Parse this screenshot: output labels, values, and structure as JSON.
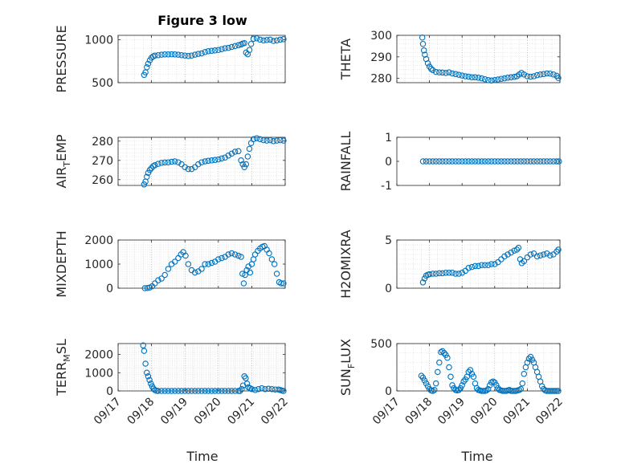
{
  "figure": {
    "title": "Figure 3 low",
    "xlabel": "Time",
    "marker_color": "#0072bd",
    "axis_color": "#262626",
    "grid_color": "#b0b0b0"
  },
  "chart_data": [
    {
      "type": "scatter",
      "ylabel": "PRESSURE",
      "ylim": [
        500,
        1050
      ],
      "yticks": [
        500,
        1000
      ],
      "xlim": [
        17,
        22
      ],
      "xticks": [
        "09/17",
        "09/18",
        "09/19",
        "09/20",
        "09/21",
        "09/22"
      ],
      "xtick_labels_shown": false,
      "grid": true,
      "series": [
        {
          "x": [
            17.78,
            17.82,
            17.86,
            17.9,
            17.95,
            18.0,
            18.05,
            18.1,
            18.2,
            18.3,
            18.4,
            18.5,
            18.6,
            18.7,
            18.8,
            18.9,
            19.0,
            19.1,
            19.2,
            19.3,
            19.4,
            19.5,
            19.6,
            19.7,
            19.8,
            19.9,
            20.0,
            20.1,
            20.2,
            20.3,
            20.4,
            20.5,
            20.6,
            20.68,
            20.73,
            20.78,
            20.83,
            20.88,
            20.93,
            20.98,
            21.05,
            21.15,
            21.25,
            21.35,
            21.45,
            21.55,
            21.65,
            21.75,
            21.85,
            21.95
          ],
          "y": [
            590,
            620,
            680,
            720,
            760,
            790,
            805,
            815,
            820,
            825,
            828,
            828,
            830,
            828,
            825,
            820,
            815,
            810,
            815,
            825,
            835,
            840,
            855,
            865,
            870,
            875,
            880,
            890,
            900,
            905,
            915,
            925,
            935,
            945,
            955,
            960,
            850,
            830,
            880,
            950,
            1010,
            1015,
            1000,
            990,
            995,
            1000,
            985,
            990,
            1000,
            1005
          ]
        }
      ]
    },
    {
      "type": "scatter",
      "ylabel": "THETA",
      "ylim": [
        278,
        300
      ],
      "yticks": [
        280,
        290,
        300
      ],
      "xlim": [
        17,
        22
      ],
      "xticks": [
        "09/17",
        "09/18",
        "09/19",
        "09/20",
        "09/21",
        "09/22"
      ],
      "xtick_labels_shown": false,
      "grid": true,
      "series": [
        {
          "x": [
            17.78,
            17.8,
            17.83,
            17.86,
            17.9,
            17.95,
            18.0,
            18.05,
            18.1,
            18.2,
            18.3,
            18.4,
            18.5,
            18.6,
            18.7,
            18.8,
            18.9,
            19.0,
            19.1,
            19.2,
            19.3,
            19.4,
            19.5,
            19.6,
            19.7,
            19.8,
            19.9,
            20.0,
            20.1,
            20.2,
            20.3,
            20.4,
            20.5,
            20.6,
            20.68,
            20.75,
            20.82,
            20.9,
            21.0,
            21.1,
            21.2,
            21.3,
            21.4,
            21.5,
            21.6,
            21.7,
            21.8,
            21.9,
            21.95
          ],
          "y": [
            299,
            296,
            293,
            291,
            289,
            287,
            285.5,
            284.5,
            283.8,
            283,
            282.8,
            282.7,
            282.5,
            282.8,
            282.3,
            282,
            281.7,
            281.3,
            281,
            280.8,
            280.5,
            280.5,
            280.3,
            280,
            279.6,
            279.2,
            279,
            279.2,
            279.5,
            279.8,
            280,
            280.3,
            280.5,
            280.7,
            281,
            281.8,
            282.5,
            281.8,
            281,
            280.8,
            281,
            281.5,
            281.8,
            282,
            282.3,
            282.2,
            281.8,
            281.2,
            280.2
          ]
        }
      ]
    },
    {
      "type": "scatter",
      "ylabel": "AIR_TEMP",
      "ylim": [
        257,
        282
      ],
      "yticks": [
        260,
        270,
        280
      ],
      "xlim": [
        17,
        22
      ],
      "xticks": [
        "09/17",
        "09/18",
        "09/19",
        "09/20",
        "09/21",
        "09/22"
      ],
      "xtick_labels_shown": false,
      "grid": true,
      "series": [
        {
          "x": [
            17.78,
            17.82,
            17.86,
            17.9,
            17.95,
            18.0,
            18.05,
            18.1,
            18.2,
            18.3,
            18.4,
            18.5,
            18.6,
            18.7,
            18.8,
            18.9,
            19.0,
            19.1,
            19.2,
            19.3,
            19.4,
            19.5,
            19.6,
            19.7,
            19.8,
            19.9,
            20.0,
            20.1,
            20.2,
            20.3,
            20.4,
            20.5,
            20.6,
            20.68,
            20.73,
            20.78,
            20.83,
            20.88,
            20.93,
            20.98,
            21.05,
            21.15,
            21.25,
            21.35,
            21.45,
            21.55,
            21.65,
            21.75,
            21.85,
            21.95
          ],
          "y": [
            257.5,
            259,
            261.5,
            263.5,
            265,
            266,
            267,
            267.5,
            268.2,
            268.7,
            268.9,
            269,
            269.3,
            269.5,
            269,
            268,
            266.5,
            265.5,
            265.5,
            266.5,
            268,
            269,
            269.5,
            269.8,
            270,
            270.2,
            270.5,
            271,
            271.5,
            272.5,
            273.5,
            274.5,
            274.8,
            270,
            268,
            266.5,
            268,
            272,
            276,
            279,
            281,
            281.5,
            281,
            280.5,
            280.3,
            280.5,
            280,
            280.3,
            280.5,
            280.3
          ]
        }
      ]
    },
    {
      "type": "scatter",
      "ylabel": "RAINFALL",
      "ylim": [
        -1,
        1
      ],
      "yticks": [
        -1,
        0,
        1
      ],
      "xlim": [
        17,
        22
      ],
      "xticks": [
        "09/17",
        "09/18",
        "09/19",
        "09/20",
        "09/21",
        "09/22"
      ],
      "xtick_labels_shown": false,
      "grid": false,
      "series": [
        {
          "x": [
            17.8,
            17.9,
            18.0,
            18.1,
            18.2,
            18.3,
            18.4,
            18.5,
            18.6,
            18.7,
            18.8,
            18.9,
            19.0,
            19.1,
            19.2,
            19.3,
            19.4,
            19.5,
            19.6,
            19.7,
            19.8,
            19.9,
            20.0,
            20.1,
            20.2,
            20.3,
            20.4,
            20.5,
            20.6,
            20.7,
            20.8,
            20.9,
            21.0,
            21.1,
            21.2,
            21.3,
            21.4,
            21.5,
            21.6,
            21.7,
            21.8,
            21.9,
            21.97
          ],
          "y": [
            0,
            0,
            0,
            0,
            0,
            0,
            0,
            0,
            0,
            0,
            0,
            0,
            0,
            0,
            0,
            0,
            0,
            0,
            0,
            0,
            0,
            0,
            0,
            0,
            0,
            0,
            0,
            0,
            0,
            0,
            0,
            0,
            0,
            0,
            0,
            0,
            0,
            0,
            0,
            0,
            0,
            0,
            0
          ]
        }
      ]
    },
    {
      "type": "scatter",
      "ylabel": "MIXDEPTH",
      "ylim": [
        0,
        2000
      ],
      "yticks": [
        0,
        1000,
        2000
      ],
      "xlim": [
        17,
        22
      ],
      "xticks": [
        "09/17",
        "09/18",
        "09/19",
        "09/20",
        "09/21",
        "09/22"
      ],
      "xtick_labels_shown": false,
      "grid": true,
      "series": [
        {
          "x": [
            17.8,
            17.88,
            17.95,
            18.02,
            18.1,
            18.2,
            18.3,
            18.4,
            18.5,
            18.6,
            18.7,
            18.8,
            18.88,
            18.95,
            19.02,
            19.1,
            19.2,
            19.3,
            19.4,
            19.5,
            19.6,
            19.7,
            19.8,
            19.9,
            20.0,
            20.1,
            20.2,
            20.3,
            20.4,
            20.5,
            20.6,
            20.68,
            20.72,
            20.76,
            20.8,
            20.85,
            20.9,
            20.95,
            21.0,
            21.05,
            21.1,
            21.18,
            21.25,
            21.32,
            21.38,
            21.45,
            21.52,
            21.6,
            21.68,
            21.75,
            21.82,
            21.88,
            21.95
          ],
          "y": [
            0,
            10,
            30,
            80,
            200,
            330,
            400,
            550,
            800,
            1000,
            1100,
            1250,
            1400,
            1500,
            1350,
            1000,
            750,
            650,
            700,
            800,
            1000,
            1000,
            1050,
            1100,
            1200,
            1250,
            1300,
            1400,
            1450,
            1400,
            1350,
            1300,
            600,
            200,
            550,
            750,
            900,
            650,
            1000,
            1200,
            1400,
            1550,
            1650,
            1720,
            1750,
            1600,
            1450,
            1200,
            1000,
            600,
            250,
            200,
            200
          ]
        }
      ]
    },
    {
      "type": "scatter",
      "ylabel": "H2OMIXRA",
      "ylim": [
        0,
        5
      ],
      "yticks": [
        0,
        5
      ],
      "xlim": [
        17,
        22
      ],
      "xticks": [
        "09/17",
        "09/18",
        "09/19",
        "09/20",
        "09/21",
        "09/22"
      ],
      "xtick_labels_shown": false,
      "grid": true,
      "series": [
        {
          "x": [
            17.8,
            17.85,
            17.9,
            17.95,
            18.0,
            18.1,
            18.2,
            18.3,
            18.4,
            18.5,
            18.6,
            18.7,
            18.8,
            18.9,
            19.0,
            19.1,
            19.2,
            19.3,
            19.4,
            19.5,
            19.6,
            19.7,
            19.8,
            19.9,
            20.0,
            20.1,
            20.2,
            20.3,
            20.4,
            20.5,
            20.6,
            20.68,
            20.73,
            20.78,
            20.83,
            20.9,
            21.0,
            21.1,
            21.2,
            21.3,
            21.4,
            21.5,
            21.6,
            21.7,
            21.8,
            21.9,
            21.95
          ],
          "y": [
            0.6,
            1.0,
            1.3,
            1.4,
            1.45,
            1.5,
            1.5,
            1.55,
            1.55,
            1.6,
            1.6,
            1.6,
            1.5,
            1.5,
            1.6,
            1.8,
            2.1,
            2.2,
            2.3,
            2.3,
            2.4,
            2.4,
            2.4,
            2.5,
            2.5,
            2.7,
            3.0,
            3.3,
            3.5,
            3.7,
            3.9,
            4.0,
            4.2,
            3.0,
            2.6,
            2.8,
            3.2,
            3.5,
            3.6,
            3.3,
            3.4,
            3.5,
            3.6,
            3.4,
            3.5,
            3.8,
            4.0
          ]
        }
      ]
    },
    {
      "type": "scatter",
      "ylabel": "TERR_MSL",
      "ylim": [
        0,
        2600
      ],
      "yticks": [
        0,
        1000,
        2000
      ],
      "xlim": [
        17,
        22
      ],
      "xticks": [
        "09/17",
        "09/18",
        "09/19",
        "09/20",
        "09/21",
        "09/22"
      ],
      "xtick_labels_shown": true,
      "grid": true,
      "series": [
        {
          "x": [
            17.75,
            17.78,
            17.82,
            17.86,
            17.9,
            17.94,
            17.98,
            18.02,
            18.06,
            18.1,
            18.15,
            18.2,
            18.3,
            18.4,
            18.5,
            18.6,
            18.7,
            18.8,
            18.9,
            19.0,
            19.1,
            19.2,
            19.3,
            19.4,
            19.5,
            19.6,
            19.7,
            19.8,
            19.9,
            20.0,
            20.1,
            20.2,
            20.3,
            20.4,
            20.5,
            20.6,
            20.65,
            20.7,
            20.74,
            20.78,
            20.82,
            20.86,
            20.9,
            20.95,
            21.0,
            21.1,
            21.2,
            21.3,
            21.4,
            21.5,
            21.6,
            21.7,
            21.8,
            21.85,
            21.9,
            21.95
          ],
          "y": [
            2500,
            2200,
            1500,
            1000,
            800,
            600,
            400,
            250,
            120,
            50,
            10,
            0,
            0,
            0,
            0,
            0,
            0,
            0,
            0,
            0,
            0,
            0,
            0,
            0,
            0,
            0,
            0,
            0,
            0,
            0,
            0,
            0,
            0,
            0,
            0,
            0,
            0,
            100,
            300,
            800,
            700,
            400,
            200,
            150,
            100,
            50,
            100,
            150,
            100,
            120,
            100,
            80,
            80,
            50,
            20,
            0
          ]
        }
      ]
    },
    {
      "type": "scatter",
      "ylabel": "SUN_FLUX",
      "ylim": [
        0,
        500
      ],
      "yticks": [
        0,
        500
      ],
      "xlim": [
        17,
        22
      ],
      "xticks": [
        "09/17",
        "09/18",
        "09/19",
        "09/20",
        "09/21",
        "09/22"
      ],
      "xtick_labels_shown": true,
      "grid": true,
      "series": [
        {
          "x": [
            17.75,
            17.8,
            17.85,
            17.9,
            17.95,
            18.0,
            18.05,
            18.1,
            18.15,
            18.2,
            18.25,
            18.3,
            18.35,
            18.4,
            18.45,
            18.5,
            18.55,
            18.6,
            18.65,
            18.7,
            18.75,
            18.8,
            18.85,
            18.9,
            18.95,
            19.0,
            19.05,
            19.1,
            19.15,
            19.2,
            19.25,
            19.3,
            19.35,
            19.4,
            19.45,
            19.5,
            19.55,
            19.6,
            19.65,
            19.7,
            19.75,
            19.8,
            19.85,
            19.9,
            19.95,
            20.0,
            20.05,
            20.1,
            20.15,
            20.2,
            20.25,
            20.3,
            20.35,
            20.4,
            20.45,
            20.5,
            20.55,
            20.6,
            20.65,
            20.7,
            20.75,
            20.8,
            20.85,
            20.9,
            20.95,
            21.0,
            21.05,
            21.1,
            21.15,
            21.2,
            21.25,
            21.3,
            21.35,
            21.4,
            21.45,
            21.5,
            21.55,
            21.6,
            21.65,
            21.7,
            21.75,
            21.8,
            21.85,
            21.9,
            21.95
          ],
          "y": [
            160,
            140,
            110,
            80,
            50,
            20,
            5,
            0,
            10,
            80,
            200,
            300,
            410,
            420,
            400,
            380,
            350,
            250,
            150,
            60,
            30,
            10,
            5,
            10,
            30,
            60,
            100,
            120,
            150,
            200,
            220,
            180,
            150,
            80,
            30,
            10,
            5,
            0,
            0,
            0,
            5,
            20,
            60,
            90,
            100,
            90,
            60,
            30,
            10,
            5,
            0,
            0,
            0,
            5,
            10,
            0,
            0,
            0,
            0,
            5,
            10,
            20,
            80,
            180,
            250,
            300,
            340,
            360,
            330,
            300,
            250,
            200,
            150,
            100,
            50,
            20,
            5,
            0,
            0,
            0,
            0,
            0,
            0,
            0,
            0
          ]
        }
      ]
    }
  ]
}
